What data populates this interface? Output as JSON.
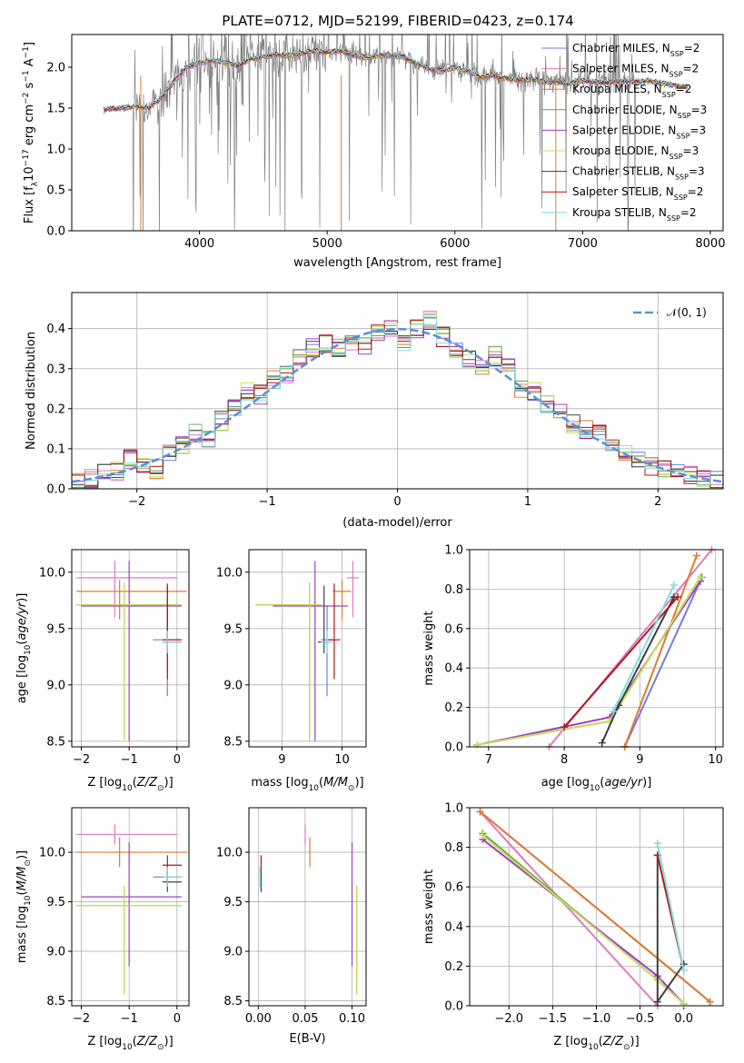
{
  "figure": {
    "title": "PLATE=0712, MJD=52199, FIBERID=0423, z=0.174"
  },
  "colors": {
    "Chabrier MILES": "#6f7de6",
    "Salpeter MILES": "#e377c2",
    "Kroupa MILES": "#e07b2d",
    "Chabrier ELODIE": "#5aa83a",
    "Salpeter ELODIE": "#a040c0",
    "Kroupa ELODIE": "#c9e05a",
    "Chabrier STELIB": "#404040",
    "Salpeter STELIB": "#b01818",
    "Kroupa STELIB": "#7fdde0",
    "data": "#808080",
    "normal": "#5b8fd9"
  },
  "chart_data": [
    {
      "id": "spectrum",
      "type": "line",
      "title": "PLATE=0712, MJD=52199, FIBERID=0423, z=0.174",
      "xlabel": "wavelength [Angstrom, rest frame]",
      "ylabel": "Flux [f_λ 10^-17 erg cm^-2 s^-1 A^-1]",
      "xlim": [
        3000,
        8100
      ],
      "ylim": [
        0,
        2.4
      ],
      "xticks": [
        4000,
        5000,
        6000,
        7000,
        8000
      ],
      "yticks": [
        0.0,
        0.5,
        1.0,
        1.5,
        2.0
      ],
      "grid": false,
      "legend_position": "top-right",
      "legend": [
        {
          "label": "Chabrier MILES, N",
          "sub": "SSP",
          "tail": "=2"
        },
        {
          "label": "Salpeter MILES, N",
          "sub": "SSP",
          "tail": "=2"
        },
        {
          "label": "Kroupa MILES, N",
          "sub": "SSP",
          "tail": "=2"
        },
        {
          "label": "Chabrier ELODIE, N",
          "sub": "SSP",
          "tail": "=3"
        },
        {
          "label": "Salpeter ELODIE, N",
          "sub": "SSP",
          "tail": "=3"
        },
        {
          "label": "Kroupa ELODIE, N",
          "sub": "SSP",
          "tail": "=3"
        },
        {
          "label": "Chabrier STELIB, N",
          "sub": "SSP",
          "tail": "=3"
        },
        {
          "label": "Salpeter STELIB, N",
          "sub": "SSP",
          "tail": "=2"
        },
        {
          "label": "Kroupa STELIB, N",
          "sub": "SSP",
          "tail": "=2"
        }
      ],
      "model_continuum": {
        "x": [
          3250,
          3400,
          3500,
          3600,
          3700,
          3800,
          3900,
          4000,
          4100,
          4200,
          4300,
          4400,
          4500,
          4600,
          4700,
          4800,
          4900,
          5000,
          5100,
          5200,
          5300,
          5400,
          5500,
          5600,
          5700,
          5800,
          5900,
          6000,
          6100,
          6200,
          6300,
          6400,
          6500,
          6600,
          6700,
          6800,
          6900,
          7000,
          7100,
          7200,
          7300,
          7400,
          7500,
          7600,
          7700,
          7800
        ],
        "y": [
          1.48,
          1.5,
          1.52,
          1.5,
          1.62,
          1.82,
          2.0,
          2.06,
          2.08,
          2.06,
          2.02,
          2.1,
          2.13,
          2.15,
          2.14,
          2.17,
          2.2,
          2.18,
          2.2,
          2.15,
          2.12,
          2.14,
          2.15,
          2.12,
          2.05,
          1.98,
          1.95,
          2.0,
          1.95,
          1.88,
          1.9,
          1.86,
          1.84,
          1.85,
          1.82,
          1.82,
          1.8,
          1.84,
          1.82,
          1.81,
          1.83,
          1.82,
          1.83,
          1.81,
          1.78,
          1.76
        ]
      }
    },
    {
      "id": "residuals",
      "type": "area",
      "xlabel": "(data-model)/error",
      "ylabel": "Normed distribution",
      "xlim": [
        -2.5,
        2.5
      ],
      "ylim": [
        0,
        0.49
      ],
      "xticks": [
        -2,
        -1,
        0,
        1,
        2
      ],
      "yticks": [
        0.0,
        0.1,
        0.2,
        0.3,
        0.4
      ],
      "grid": true,
      "legend_position": "top-right",
      "legend": [
        {
          "label": "𝒩(0, 1)"
        }
      ],
      "bin_centers": [
        -2.45,
        -2.35,
        -2.25,
        -2.15,
        -2.05,
        -1.95,
        -1.85,
        -1.75,
        -1.65,
        -1.55,
        -1.45,
        -1.35,
        -1.25,
        -1.15,
        -1.05,
        -0.95,
        -0.85,
        -0.75,
        -0.65,
        -0.55,
        -0.45,
        -0.35,
        -0.25,
        -0.15,
        -0.05,
        0.05,
        0.15,
        0.25,
        0.35,
        0.45,
        0.55,
        0.65,
        0.75,
        0.85,
        0.95,
        1.05,
        1.15,
        1.25,
        1.35,
        1.45,
        1.55,
        1.65,
        1.75,
        1.85,
        1.95,
        2.05,
        2.15,
        2.25,
        2.35,
        2.45
      ],
      "histogram_mean": [
        0.015,
        0.025,
        0.04,
        0.045,
        0.075,
        0.055,
        0.05,
        0.085,
        0.11,
        0.14,
        0.12,
        0.17,
        0.2,
        0.24,
        0.235,
        0.27,
        0.29,
        0.33,
        0.35,
        0.36,
        0.35,
        0.37,
        0.36,
        0.39,
        0.4,
        0.37,
        0.4,
        0.42,
        0.38,
        0.35,
        0.32,
        0.3,
        0.33,
        0.3,
        0.25,
        0.24,
        0.21,
        0.2,
        0.16,
        0.15,
        0.14,
        0.11,
        0.09,
        0.07,
        0.055,
        0.05,
        0.04,
        0.035,
        0.025,
        0.02
      ]
    },
    {
      "id": "age_vs_Z",
      "type": "scatter",
      "xlabel": "Z [log10(Z/Z_sun)]",
      "ylabel": "age [log10(age/yr)]",
      "xlim": [
        -2.2,
        0.25
      ],
      "ylim": [
        8.45,
        10.2
      ],
      "xticks": [
        -2,
        -1,
        0
      ],
      "yticks": [
        8.5,
        9.0,
        9.5,
        10.0
      ],
      "grid": true
    },
    {
      "id": "age_vs_mass",
      "type": "scatter",
      "xlabel": "mass [log10(M/M_sun)]",
      "xlim": [
        8.45,
        10.4
      ],
      "ylim": [
        8.45,
        10.2
      ],
      "xticks": [
        9,
        10
      ],
      "yticks": [
        8.5,
        9.0,
        9.5,
        10.0
      ],
      "grid": true
    },
    {
      "id": "massweight_vs_age",
      "type": "line",
      "xlabel": "age [log10(age/yr)]",
      "ylabel": "mass weight",
      "xlim": [
        6.75,
        10.1
      ],
      "ylim": [
        0,
        1.0
      ],
      "xticks": [
        7,
        8,
        9,
        10
      ],
      "yticks": [
        0.0,
        0.2,
        0.4,
        0.6,
        0.8,
        1.0
      ],
      "grid": true,
      "series": [
        {
          "name": "Chabrier MILES",
          "x": [
            8.8,
            9.82
          ],
          "y": [
            0.0,
            0.86
          ]
        },
        {
          "name": "Salpeter MILES",
          "x": [
            7.8,
            9.95
          ],
          "y": [
            0.0,
            1.0
          ]
        },
        {
          "name": "Kroupa MILES",
          "x": [
            8.8,
            9.75
          ],
          "y": [
            0.0,
            0.97
          ]
        },
        {
          "name": "Chabrier ELODIE",
          "x": [
            6.85,
            8.6,
            9.8
          ],
          "y": [
            0.01,
            0.13,
            0.86
          ]
        },
        {
          "name": "Salpeter ELODIE",
          "x": [
            6.85,
            8.6,
            9.8
          ],
          "y": [
            0.01,
            0.15,
            0.84
          ]
        },
        {
          "name": "Kroupa ELODIE",
          "x": [
            6.85,
            8.6,
            9.8
          ],
          "y": [
            0.01,
            0.13,
            0.86
          ]
        },
        {
          "name": "Chabrier STELIB",
          "x": [
            8.5,
            8.72,
            9.45
          ],
          "y": [
            0.02,
            0.21,
            0.76
          ]
        },
        {
          "name": "Salpeter STELIB",
          "x": [
            8.0,
            9.5
          ],
          "y": [
            0.1,
            0.76
          ]
        },
        {
          "name": "Kroupa STELIB",
          "x": [
            8.65,
            9.45
          ],
          "y": [
            0.18,
            0.82
          ]
        }
      ]
    },
    {
      "id": "mass_vs_Z",
      "type": "scatter",
      "xlabel": "Z [log10(Z/Z_sun)]",
      "ylabel": "mass [log10(M/M_sun)]",
      "xlim": [
        -2.2,
        0.25
      ],
      "ylim": [
        8.45,
        10.45
      ],
      "xticks": [
        -2,
        -1,
        0
      ],
      "yticks": [
        8.5,
        9.0,
        9.5,
        10.0
      ],
      "grid": true
    },
    {
      "id": "mass_vs_EBV",
      "type": "scatter",
      "xlabel": "E(B-V)",
      "xlim": [
        -0.01,
        0.115
      ],
      "ylim": [
        8.45,
        10.45
      ],
      "xticks": [
        0.0,
        0.05,
        0.1
      ],
      "xtick_labels": [
        "0.00",
        "0.05",
        "0.10"
      ],
      "yticks": [
        8.5,
        9.0,
        9.5,
        10.0
      ],
      "grid": true
    },
    {
      "id": "massweight_vs_Z",
      "type": "line",
      "xlabel": "Z [log10(Z/Z_sun)]",
      "ylabel": "mass weight",
      "xlim": [
        -2.45,
        0.45
      ],
      "ylim": [
        0,
        1.0
      ],
      "xticks": [
        -2.0,
        -1.5,
        -1.0,
        -0.5,
        0.0
      ],
      "xtick_labels": [
        "−2.0",
        "−1.5",
        "−1.0",
        "−0.5",
        "0.0"
      ],
      "yticks": [
        0.0,
        0.2,
        0.4,
        0.6,
        0.8,
        1.0
      ],
      "grid": true,
      "series": [
        {
          "name": "Chabrier MILES",
          "x": [
            -2.33,
            0.3
          ],
          "y": [
            0.98,
            0.02
          ]
        },
        {
          "name": "Salpeter MILES",
          "x": [
            -2.33,
            -0.3
          ],
          "y": [
            0.98,
            0.0
          ]
        },
        {
          "name": "Kroupa MILES",
          "x": [
            -2.33,
            0.3
          ],
          "y": [
            0.98,
            0.02
          ]
        },
        {
          "name": "Chabrier ELODIE",
          "x": [
            -2.3,
            -0.3,
            0.0
          ],
          "y": [
            0.87,
            0.13,
            0.01
          ]
        },
        {
          "name": "Salpeter ELODIE",
          "x": [
            -2.3,
            -0.3,
            0.0
          ],
          "y": [
            0.84,
            0.15,
            0.01
          ]
        },
        {
          "name": "Kroupa ELODIE",
          "x": [
            -2.3,
            -0.3,
            0.0
          ],
          "y": [
            0.86,
            0.13,
            0.01
          ]
        },
        {
          "name": "Chabrier STELIB",
          "x": [
            -0.3,
            -0.3,
            0.0
          ],
          "y": [
            0.76,
            0.02,
            0.21
          ]
        },
        {
          "name": "Salpeter STELIB",
          "x": [
            -0.3,
            0.0
          ],
          "y": [
            0.76,
            0.18
          ]
        },
        {
          "name": "Kroupa STELIB",
          "x": [
            -0.3,
            0.0
          ],
          "y": [
            0.82,
            0.18
          ]
        }
      ]
    }
  ],
  "fit_parameters": [
    {
      "name": "Chabrier MILES",
      "Z": -0.2,
      "Zerr": [
        0.3,
        0.3
      ],
      "age": 9.4,
      "ageErr": [
        0.5,
        0.3
      ],
      "mass": 9.75,
      "massErr": [
        0.1,
        0.1
      ],
      "ebv": 0.002,
      "ebvErr": [
        0.0,
        0.0
      ]
    },
    {
      "name": "Salpeter MILES",
      "Z": -1.3,
      "Zerr": [
        0.8,
        1.3
      ],
      "age": 9.95,
      "ageErr": [
        0.35,
        0.15
      ],
      "mass": 10.18,
      "massErr": [
        0.1,
        0.1
      ],
      "ebv": 0.05,
      "ebvErr": [
        0.0,
        0.0
      ]
    },
    {
      "name": "Kroupa MILES",
      "Z": -1.2,
      "Zerr": [
        0.9,
        1.4
      ],
      "age": 9.83,
      "ageErr": [
        0.25,
        0.1
      ],
      "mass": 10.0,
      "massErr": [
        0.15,
        0.15
      ],
      "ebv": 0.055,
      "ebvErr": [
        0.0,
        0.0
      ]
    },
    {
      "name": "Chabrier ELODIE",
      "Z": -1.1,
      "Zerr": [
        1.0,
        1.2
      ],
      "age": 9.71,
      "ageErr": [
        1.2,
        0.2
      ],
      "mass": 9.46,
      "massErr": [
        0.9,
        0.2
      ],
      "ebv": 0.105,
      "ebvErr": [
        0.0,
        0.0
      ]
    },
    {
      "name": "Salpeter ELODIE",
      "Z": -1.0,
      "Zerr": [
        1.0,
        1.1
      ],
      "age": 9.7,
      "ageErr": [
        1.2,
        0.4
      ],
      "mass": 9.55,
      "massErr": [
        0.7,
        0.55
      ],
      "ebv": 0.1,
      "ebvErr": [
        0.0,
        0.0
      ]
    },
    {
      "name": "Kroupa ELODIE",
      "Z": -1.1,
      "Zerr": [
        1.0,
        1.2
      ],
      "age": 9.71,
      "ageErr": [
        1.2,
        0.2
      ],
      "mass": 9.46,
      "massErr": [
        0.9,
        0.2
      ],
      "ebv": 0.105,
      "ebvErr": [
        0.0,
        0.0
      ]
    },
    {
      "name": "Chabrier STELIB",
      "Z": -0.2,
      "Zerr": [
        0.1,
        0.3
      ],
      "age": 9.38,
      "ageErr": [
        0.1,
        0.5
      ],
      "mass": 9.7,
      "massErr": [
        0.1,
        0.1
      ],
      "ebv": 0.003,
      "ebvErr": [
        0.0,
        0.0
      ]
    },
    {
      "name": "Salpeter STELIB",
      "Z": -0.2,
      "Zerr": [
        0.1,
        0.3
      ],
      "age": 9.4,
      "ageErr": [
        0.35,
        0.5
      ],
      "mass": 9.87,
      "massErr": [
        0.1,
        0.1
      ],
      "ebv": 0.003,
      "ebvErr": [
        0.0,
        0.0
      ]
    },
    {
      "name": "Kroupa STELIB",
      "Z": -0.2,
      "Zerr": [
        0.1,
        0.3
      ],
      "age": 9.38,
      "ageErr": [
        0.1,
        0.1
      ],
      "mass": 9.75,
      "massErr": [
        0.1,
        0.1
      ],
      "ebv": 0.002,
      "ebvErr": [
        0.0,
        0.0
      ]
    }
  ]
}
